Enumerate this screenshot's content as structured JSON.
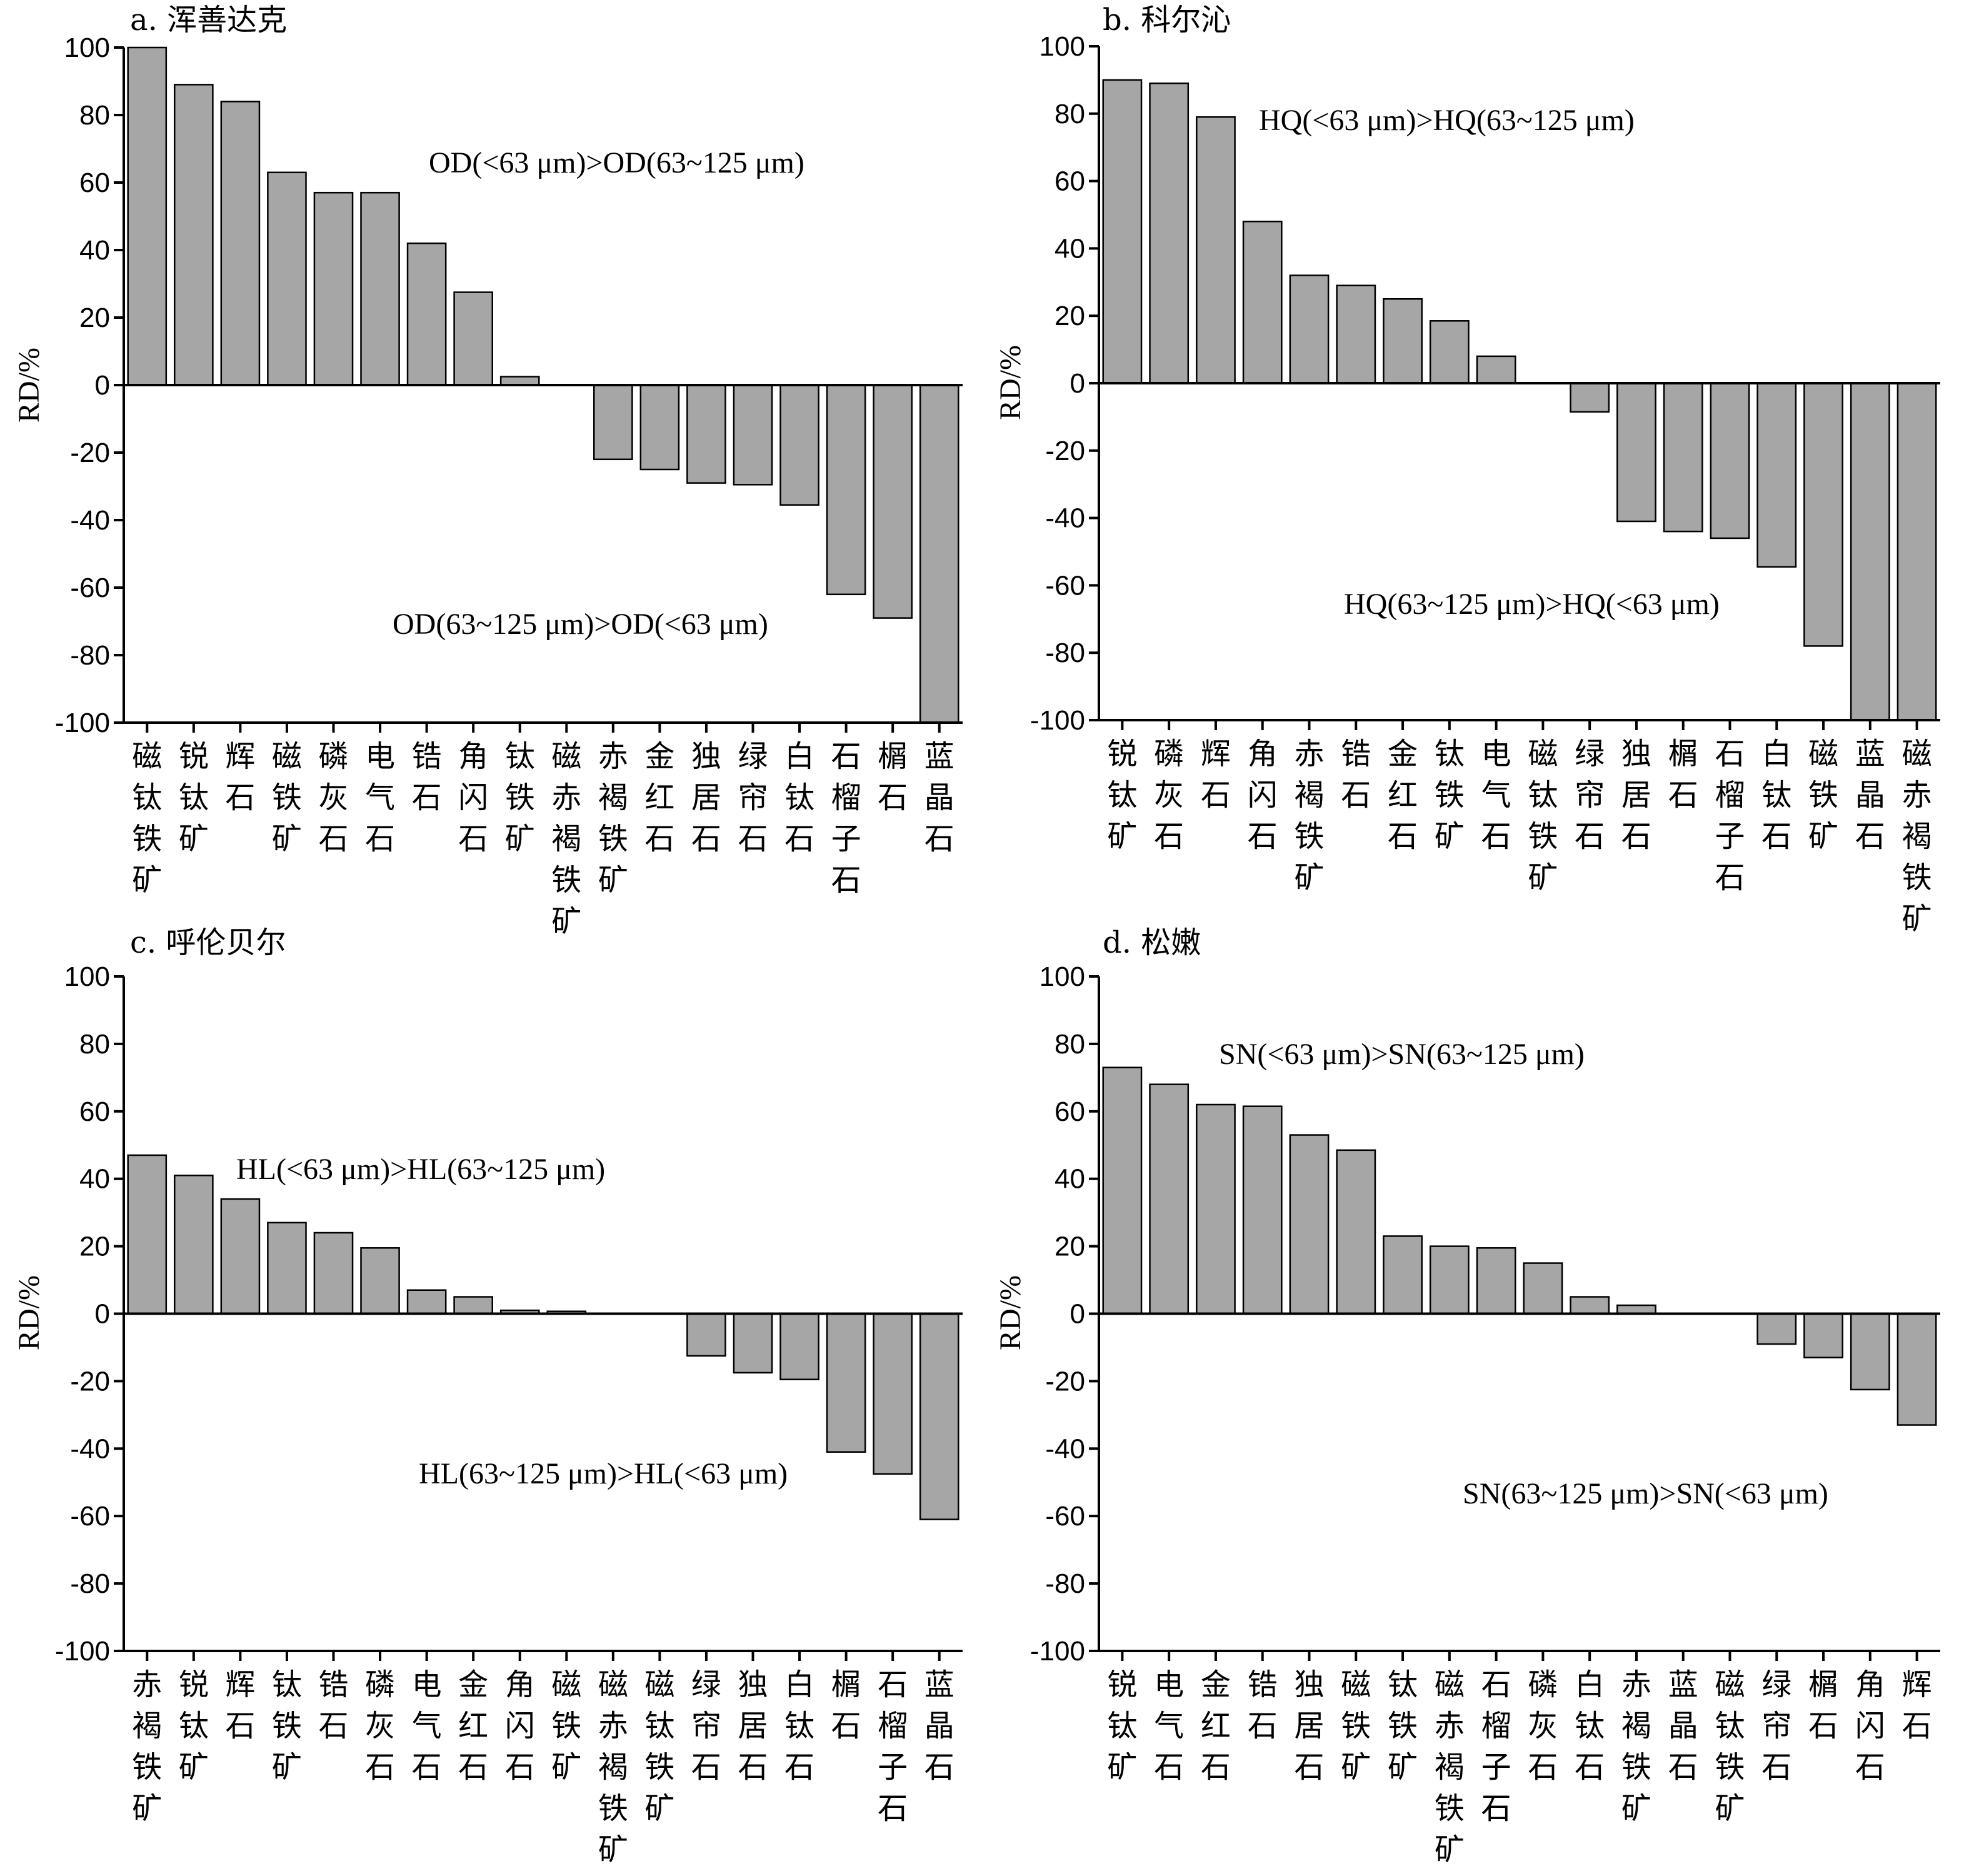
{
  "chart_data": [
    {
      "type": "bar",
      "title": "a. 浑善达克",
      "ylabel": "RD/%",
      "ylim": [
        -100,
        100
      ],
      "yticks": [
        "100",
        "80",
        "60",
        "40",
        "20",
        "0",
        "-20",
        "-40",
        "-60",
        "-80",
        "-100"
      ],
      "categories": [
        "磁钛铁矿",
        "锐钛矿",
        "辉石",
        "磁铁矿",
        "磷灰石",
        "电气石",
        "锆石",
        "角闪石",
        "钛铁矿",
        "磁赤褐铁矿",
        "赤褐铁矿",
        "金红石",
        "独居石",
        "绿帘石",
        "白钛石",
        "石榴子石",
        "榍石",
        "蓝晶石"
      ],
      "values": [
        100,
        89,
        84,
        63,
        57,
        57,
        42,
        27.5,
        2.5,
        0,
        -22,
        -25,
        -29,
        -29.5,
        -35.5,
        -62,
        -69,
        -100
      ],
      "annotation_top": "OD(<63 μm)>OD(63~125 μm)",
      "annotation_bottom": "OD(63~125 μm)>OD(<63 μm)"
    },
    {
      "type": "bar",
      "title": "b. 科尔沁",
      "ylabel": "RD/%",
      "ylim": [
        -100,
        100
      ],
      "yticks": [
        "100",
        "80",
        "60",
        "40",
        "20",
        "0",
        "-20",
        "-40",
        "-60",
        "-80",
        "-100"
      ],
      "categories": [
        "锐钛矿",
        "磷灰石",
        "辉石",
        "角闪石",
        "赤褐铁矿",
        "锆石",
        "金红石",
        "钛铁矿",
        "电气石",
        "磁钛铁矿",
        "绿帘石",
        "独居石",
        "榍石",
        "石榴子石",
        "白钛石",
        "磁铁矿",
        "蓝晶石",
        "磁赤褐铁矿"
      ],
      "values": [
        90,
        89,
        79,
        48,
        32,
        29,
        25,
        18.5,
        8,
        0,
        -8.5,
        -41,
        -44,
        -46,
        -54.5,
        -78,
        -100,
        -100
      ],
      "annotation_top": "HQ(<63 μm)>HQ(63~125 μm)",
      "annotation_bottom": "HQ(63~125 μm)>HQ(<63 μm)"
    },
    {
      "type": "bar",
      "title": "c. 呼伦贝尔",
      "ylabel": "RD/%",
      "ylim": [
        -100,
        100
      ],
      "yticks": [
        "100",
        "80",
        "60",
        "40",
        "20",
        "0",
        "-20",
        "-40",
        "-60",
        "-80",
        "-100"
      ],
      "categories": [
        "赤褐铁矿",
        "锐钛矿",
        "辉石",
        "钛铁矿",
        "锆石",
        "磷灰石",
        "电气石",
        "金红石",
        "角闪石",
        "磁铁矿",
        "磁赤褐铁矿",
        "磁钛铁矿",
        "绿帘石",
        "独居石",
        "白钛石",
        "榍石",
        "石榴子石",
        "蓝晶石"
      ],
      "values": [
        47,
        41,
        34,
        27,
        24,
        19.5,
        7,
        5,
        1,
        0.7,
        0,
        0,
        -12.5,
        -17.5,
        -19.5,
        -41,
        -47.5,
        -61
      ],
      "annotation_top": "HL(<63 μm)>HL(63~125 μm)",
      "annotation_bottom": "HL(63~125 μm)>HL(<63 μm)"
    },
    {
      "type": "bar",
      "title": "d. 松嫩",
      "ylabel": "RD/%",
      "ylim": [
        -100,
        100
      ],
      "yticks": [
        "100",
        "80",
        "60",
        "40",
        "20",
        "0",
        "-20",
        "-40",
        "-60",
        "-80",
        "-100"
      ],
      "categories": [
        "锐钛矿",
        "电气石",
        "金红石",
        "锆石",
        "独居石",
        "磁铁矿",
        "钛铁矿",
        "磁赤褐铁矿",
        "石榴子石",
        "磷灰石",
        "白钛石",
        "赤褐铁矿",
        "蓝晶石",
        "磁钛铁矿",
        "绿帘石",
        "榍石",
        "角闪石",
        "辉石"
      ],
      "values": [
        73,
        68,
        62,
        61.5,
        53,
        48.5,
        23,
        20,
        19.5,
        15,
        5,
        2.5,
        0,
        0,
        -9,
        -13,
        -22.5,
        -33
      ],
      "annotation_top": "SN(<63 μm)>SN(63~125 μm)",
      "annotation_bottom": "SN(63~125 μm)>SN(<63 μm)"
    }
  ]
}
